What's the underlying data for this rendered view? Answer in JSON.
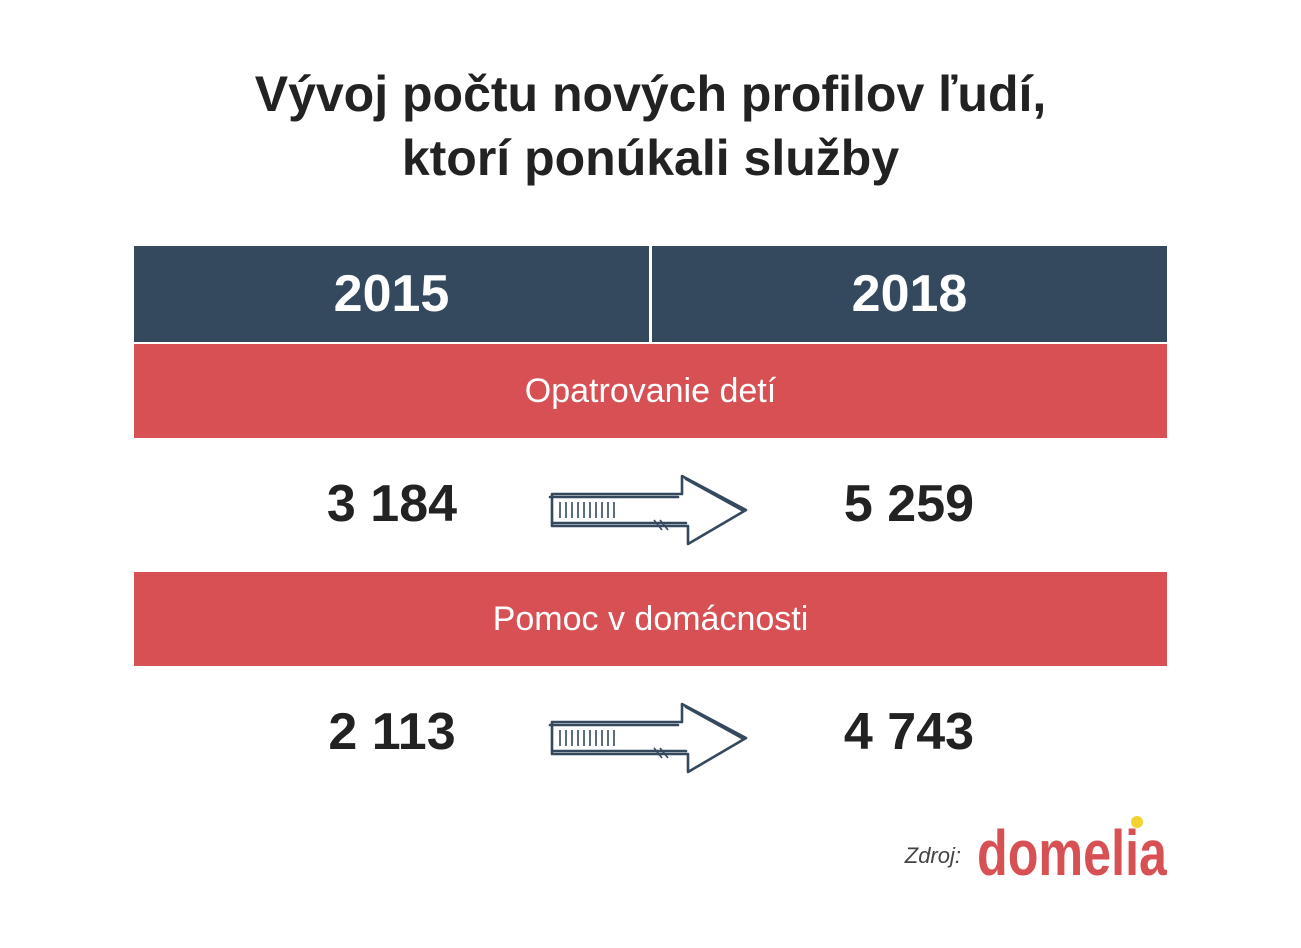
{
  "title": {
    "line1": "Vývoj počtu nových profilov ľudí,",
    "line2": "ktorí ponúkali služby"
  },
  "table": {
    "headers": [
      "2015",
      "2018"
    ],
    "rows": [
      {
        "category": "Opatrovanie detí",
        "value_2015": "3 184",
        "value_2018": "5 259"
      },
      {
        "category": "Pomoc v domácnosti",
        "value_2015": "2 113",
        "value_2018": "4 743"
      }
    ]
  },
  "source": {
    "label": "Zdroj:",
    "logo_text": "domelia"
  },
  "colors": {
    "header": "#34495e",
    "category": "#d75154",
    "logo": "#d75154",
    "logo_dot": "#f2d230"
  },
  "icons": {
    "arrow": "sketch-arrow-right-icon"
  },
  "chart_data": {
    "type": "table",
    "title": "Vývoj počtu nových profilov ľudí, ktorí ponúkali služby",
    "columns": [
      "2015",
      "2018"
    ],
    "categories": [
      "Opatrovanie detí",
      "Pomoc v domácnosti"
    ],
    "series": [
      {
        "name": "2015",
        "values": [
          3184,
          2113
        ]
      },
      {
        "name": "2018",
        "values": [
          5259,
          4743
        ]
      }
    ]
  }
}
